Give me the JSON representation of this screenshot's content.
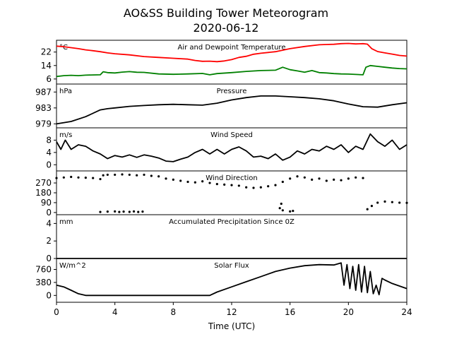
{
  "figure": {
    "title_line1": "AO&SS Building Tower Meteorogram",
    "title_line2": "2020-06-12",
    "xlabel": "Time (UTC)",
    "xticks": [
      0,
      4,
      8,
      12,
      16,
      20,
      24
    ]
  },
  "chart_data": [
    {
      "type": "line",
      "title": "Air and Dewpoint Temperature",
      "unit": "°C",
      "ylim": [
        3,
        29
      ],
      "yticks": [
        6,
        14,
        22
      ],
      "xlim": [
        0,
        24
      ],
      "series": [
        {
          "color": "#ff0000",
          "x": [
            0,
            0.5,
            1,
            1.5,
            2,
            2.5,
            3,
            3.5,
            4,
            5,
            6,
            7,
            8,
            9,
            9.5,
            10,
            10.5,
            11,
            11.5,
            12,
            12.5,
            13,
            13.5,
            14,
            15,
            16,
            17,
            18,
            18.5,
            19,
            19.5,
            20,
            20.5,
            21,
            21.3,
            21.6,
            22,
            22.5,
            23,
            23.5,
            24
          ],
          "y": [
            25.5,
            25.2,
            24.6,
            24,
            23.3,
            22.8,
            22.2,
            21.5,
            21,
            20.3,
            19.3,
            18.8,
            18.3,
            17.8,
            17,
            16.5,
            16.6,
            16.3,
            16.7,
            17.5,
            18.8,
            19.5,
            20.7,
            21.3,
            22.2,
            24,
            25.3,
            26.3,
            26.5,
            26.6,
            27,
            27.1,
            26.8,
            27,
            26.7,
            24,
            22.3,
            21.5,
            20.8,
            20,
            19.6
          ]
        },
        {
          "color": "#008000",
          "x": [
            0,
            0.5,
            1,
            1.5,
            2,
            2.5,
            3,
            3.2,
            3.5,
            4,
            4.5,
            5,
            5.5,
            6,
            7,
            8,
            9,
            10,
            10.5,
            11,
            12,
            13,
            14,
            15,
            15.5,
            16,
            16.5,
            17,
            17.5,
            18,
            18.5,
            19,
            19.5,
            20,
            20.5,
            21,
            21.2,
            21.5,
            22,
            22.5,
            23,
            23.5,
            24
          ],
          "y": [
            7.5,
            8,
            8.2,
            8,
            8.3,
            8.4,
            8.5,
            10.3,
            9.8,
            9.6,
            10.1,
            10.4,
            10,
            9.9,
            9,
            8.8,
            9,
            9.3,
            8.5,
            9.2,
            9.8,
            10.5,
            11,
            11.2,
            13,
            11.5,
            10.8,
            10,
            11,
            9.8,
            9.6,
            9.2,
            9,
            8.9,
            8.7,
            8.5,
            13,
            14,
            13.5,
            13,
            12.5,
            12.2,
            12
          ]
        }
      ]
    },
    {
      "type": "line",
      "title": "Pressure",
      "unit": "hPa",
      "ylim": [
        978,
        989
      ],
      "yticks": [
        979,
        983,
        987
      ],
      "xlim": [
        0,
        24
      ],
      "series": [
        {
          "color": "#000000",
          "x": [
            0,
            1,
            2,
            3,
            3.5,
            4,
            5,
            6,
            7,
            8,
            9,
            10,
            11,
            12,
            13,
            14,
            15,
            16,
            17,
            18,
            19,
            20,
            21,
            22,
            23,
            24
          ],
          "y": [
            979,
            979.6,
            980.8,
            982.5,
            982.8,
            983,
            983.4,
            983.6,
            983.8,
            983.9,
            983.8,
            983.7,
            984.2,
            985,
            985.6,
            986,
            986,
            985.8,
            985.6,
            985.3,
            984.8,
            984,
            983.3,
            983.2,
            983.8,
            984.3
          ]
        }
      ]
    },
    {
      "type": "line",
      "title": "Wind Speed",
      "unit": "m/s",
      "ylim": [
        -2,
        12
      ],
      "yticks": [
        0,
        4,
        8
      ],
      "xlim": [
        0,
        24
      ],
      "series": [
        {
          "color": "#000000",
          "x": [
            0,
            0.3,
            0.6,
            1,
            1.5,
            2,
            2.5,
            3,
            3.5,
            4,
            4.5,
            5,
            5.5,
            6,
            6.5,
            7,
            7.5,
            8,
            8.5,
            9,
            9.5,
            10,
            10.5,
            11,
            11.5,
            12,
            12.5,
            13,
            13.5,
            14,
            14.5,
            15,
            15.5,
            16,
            16.5,
            17,
            17.5,
            18,
            18.5,
            19,
            19.5,
            20,
            20.5,
            21,
            21.5,
            22,
            22.5,
            23,
            23.5,
            24
          ],
          "y": [
            7.5,
            5,
            8,
            5,
            6.5,
            6,
            4.5,
            3.5,
            2,
            3,
            2.5,
            3.2,
            2.4,
            3.2,
            2.8,
            2.2,
            1.2,
            1,
            1.8,
            2.5,
            4,
            5,
            3.5,
            5,
            3.5,
            5,
            5.8,
            4.5,
            2.5,
            2.8,
            2,
            3.5,
            1.5,
            2.5,
            4.5,
            3.5,
            5,
            4.5,
            6,
            5,
            6.5,
            4,
            6,
            5,
            10,
            7.5,
            6,
            8,
            5,
            6.5
          ]
        }
      ]
    },
    {
      "type": "scatter",
      "title": "Wind Direction",
      "unit": "",
      "ylim": [
        -20,
        380
      ],
      "yticks": [
        0,
        90,
        180,
        270
      ],
      "xlim": [
        0,
        24
      ],
      "series": [
        {
          "color": "#000000",
          "x": [
            0,
            0.5,
            1,
            1.5,
            2,
            2.5,
            3,
            3.2,
            3.5,
            4,
            4.5,
            5,
            5.5,
            6,
            6.5,
            7,
            7.5,
            8,
            8.5,
            9,
            9.5,
            10,
            10.5,
            11,
            11.5,
            12,
            12.5,
            13,
            13.5,
            14,
            14.5,
            15,
            15.5,
            16,
            16.5,
            17,
            17.5,
            18,
            18.5,
            19,
            19.5,
            20,
            20.5,
            21,
            21.3,
            21.6,
            22,
            22.5,
            23,
            23.5,
            24
          ],
          "y": [
            315,
            320,
            325,
            320,
            318,
            315,
            305,
            340,
            345,
            345,
            348,
            345,
            340,
            345,
            335,
            330,
            310,
            300,
            290,
            280,
            275,
            285,
            270,
            260,
            255,
            250,
            245,
            230,
            225,
            230,
            240,
            250,
            280,
            310,
            330,
            320,
            300,
            310,
            290,
            300,
            295,
            310,
            320,
            315,
            30,
            60,
            90,
            100,
            95,
            90,
            88
          ]
        },
        {
          "color": "#000000",
          "x": [
            3,
            3.5,
            4,
            4.3,
            4.6,
            5,
            5.3,
            5.6,
            5.9,
            15.3,
            15.4,
            15.5,
            16,
            16.2
          ],
          "y": [
            5,
            8,
            10,
            5,
            8,
            6,
            10,
            5,
            8,
            40,
            80,
            20,
            10,
            15
          ]
        }
      ]
    },
    {
      "type": "line",
      "title": "Accumulated Precipitation Since 0Z",
      "unit": "mm",
      "ylim": [
        0,
        5
      ],
      "yticks": [
        0,
        2,
        4
      ],
      "xlim": [
        0,
        24
      ],
      "series": [
        {
          "color": "#000000",
          "x": [
            0,
            24
          ],
          "y": [
            0,
            0
          ]
        }
      ]
    },
    {
      "type": "line",
      "title": "Solar Flux",
      "unit": "W/m^2",
      "ylim": [
        -200,
        1080
      ],
      "yticks": [
        0,
        380,
        760
      ],
      "xlim": [
        0,
        24
      ],
      "series": [
        {
          "color": "#000000",
          "x": [
            0,
            0.5,
            1,
            1.5,
            2,
            10.5,
            11,
            12,
            13,
            14,
            15,
            16,
            17,
            18,
            19,
            19.5,
            19.7,
            19.9,
            20.1,
            20.3,
            20.5,
            20.7,
            20.9,
            21.1,
            21.3,
            21.5,
            21.7,
            21.9,
            22.1,
            22.3,
            22.5,
            23,
            24
          ],
          "y": [
            300,
            250,
            150,
            50,
            0,
            0,
            100,
            250,
            400,
            550,
            700,
            800,
            870,
            900,
            890,
            950,
            300,
            900,
            200,
            850,
            150,
            900,
            100,
            850,
            80,
            700,
            50,
            300,
            20,
            500,
            450,
            350,
            200
          ]
        }
      ]
    }
  ]
}
